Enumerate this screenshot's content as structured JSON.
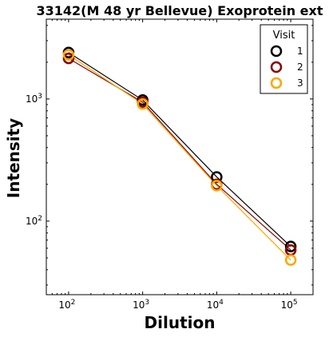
{
  "chart_data": {
    "type": "line",
    "title": "33142(M 48 yr Bellevue) Exoprotein ext",
    "xlabel": "Dilution",
    "ylabel": "Intensity",
    "xscale": "log",
    "yscale": "log",
    "xlim": [
      50,
      200000
    ],
    "ylim": [
      25,
      4500
    ],
    "x_ticks": [
      {
        "value": 100,
        "base": "10",
        "exp": "2"
      },
      {
        "value": 1000,
        "base": "10",
        "exp": "3"
      },
      {
        "value": 10000,
        "base": "10",
        "exp": "4"
      },
      {
        "value": 100000,
        "base": "10",
        "exp": "5"
      }
    ],
    "y_ticks": [
      {
        "value": 100,
        "base": "10",
        "exp": "2"
      },
      {
        "value": 1000,
        "base": "10",
        "exp": "3"
      }
    ],
    "x": [
      100,
      1000,
      10000,
      100000
    ],
    "series": [
      {
        "name": "1",
        "color": "#000000",
        "values": [
          2400,
          980,
          230,
          62
        ]
      },
      {
        "name": "2",
        "color": "#8b0000",
        "values": [
          2150,
          940,
          200,
          58
        ]
      },
      {
        "name": "3",
        "color": "#ffa500",
        "values": [
          2300,
          910,
          195,
          48
        ]
      }
    ],
    "legend": {
      "title": "Visit",
      "placement": "top-right"
    }
  }
}
